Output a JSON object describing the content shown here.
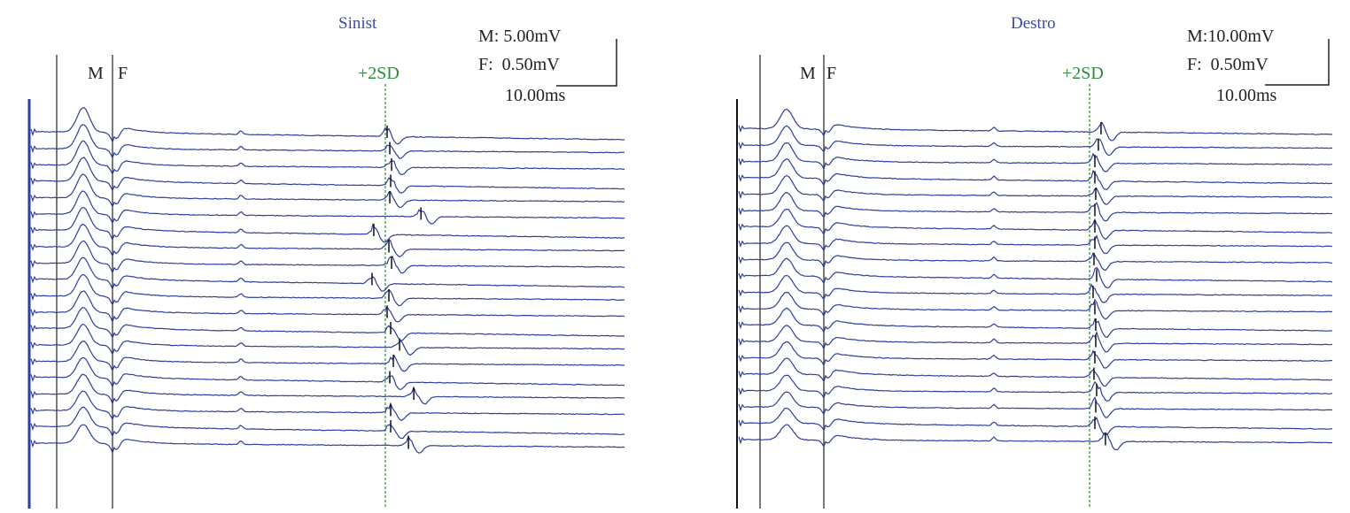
{
  "chart_data": [
    {
      "type": "line",
      "title": "Sinist",
      "scale": {
        "m": "M: 5.00mV",
        "f": "F:  0.50mV",
        "time": "10.00ms"
      },
      "markers": {
        "m": "M",
        "f": "F",
        "sd": "+2SD"
      },
      "trace_color": "#2f3d9c",
      "sd_color": "#2e8b3a",
      "n_traces": 20,
      "late_response_ms": [
        40.2,
        40.5,
        40.7,
        40.6,
        40.5,
        44.0,
        38.7,
        40.4,
        40.7,
        38.5,
        40.4,
        40.2,
        40.6,
        41.6,
        40.9,
        40.5,
        43.2,
        40.6,
        40.6,
        42.6
      ]
    },
    {
      "type": "line",
      "title": "Destro",
      "scale": {
        "m": "M:10.00mV",
        "f": "F:  0.50mV",
        "time": "10.00ms"
      },
      "markers": {
        "m": "M",
        "f": "F",
        "sd": "+2SD"
      },
      "trace_color": "#2f3d9c",
      "sd_color": "#2e8b3a",
      "n_traces": 20,
      "late_response_ms": [
        41.3,
        41.0,
        40.6,
        40.6,
        40.7,
        40.6,
        40.6,
        40.6,
        40.5,
        40.8,
        40.4,
        40.6,
        40.7,
        40.7,
        40.6,
        40.5,
        40.8,
        40.7,
        40.6,
        41.8
      ]
    }
  ]
}
